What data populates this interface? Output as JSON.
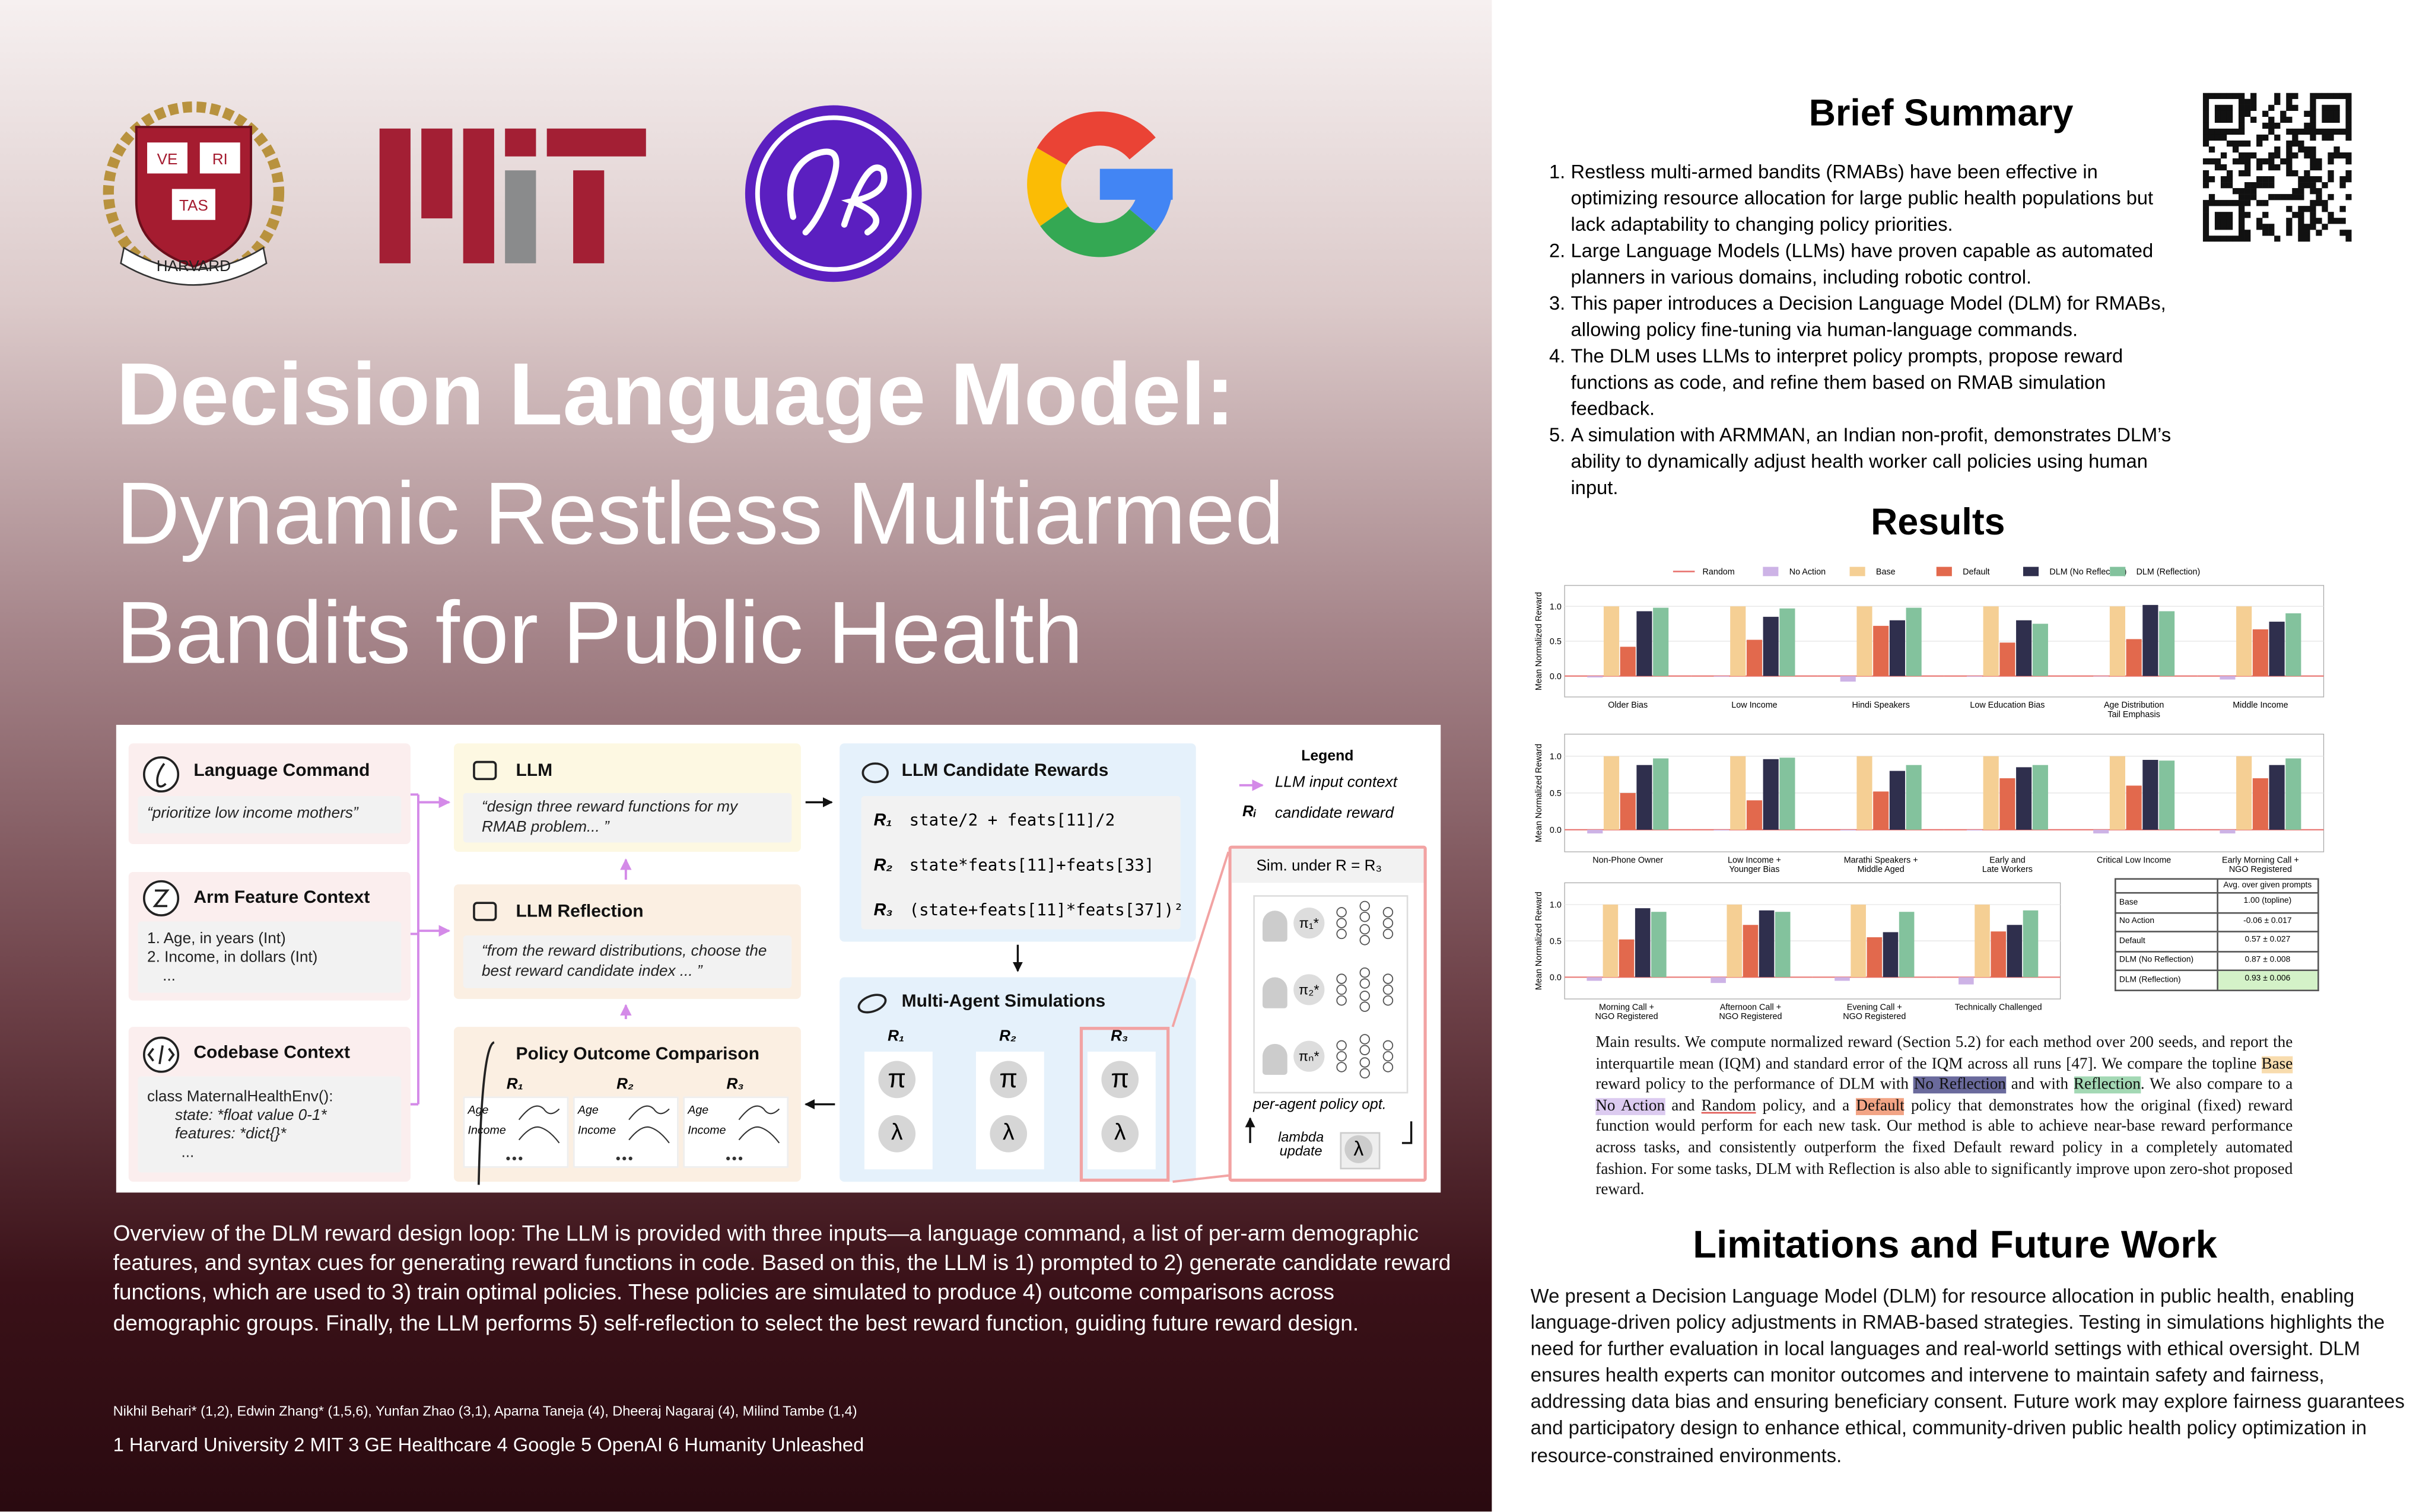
{
  "logos": {
    "harvard": [
      "VE",
      "RI",
      "TAS",
      "HARVARD"
    ]
  },
  "title": {
    "line1": "Decision Language Model:",
    "line2": "Dynamic Restless Multiarmed",
    "line3": "Bandits for Public Health"
  },
  "diagram": {
    "language_command": {
      "title": "Language Command",
      "text": "“prioritize low income mothers”"
    },
    "arm_feature": {
      "title": "Arm Feature Context",
      "lines": [
        "1. Age, in years (Int)",
        "2. Income, in dollars (Int)",
        "..."
      ]
    },
    "codebase": {
      "title": "Codebase Context",
      "lines": [
        "class MaternalHealthEnv():",
        "state: *float value 0-1*",
        "features: *dict{}*",
        "..."
      ]
    },
    "llm": {
      "title": "LLM",
      "text": "“design three reward functions for my RMAB problem... ”"
    },
    "reflection": {
      "title": "LLM Reflection",
      "text": "“from the reward distributions, choose the best reward candidate index ... ”"
    },
    "policy": {
      "title": "Policy Outcome Comparison",
      "panels": [
        "R₁",
        "R₂",
        "R₃"
      ],
      "rows": [
        "Age",
        "Income"
      ]
    },
    "candidates": {
      "title": "LLM Candidate Rewards",
      "items": [
        {
          "name": "R₁",
          "code": "state/2 + feats[11]/2"
        },
        {
          "name": "R₂",
          "code": "state*feats[11]+feats[33]"
        },
        {
          "name": "R₃",
          "code": "(state+feats[11]*feats[37])²"
        }
      ]
    },
    "legend": {
      "title": "Legend",
      "input": "LLM input context",
      "symbol": "Rᵢ",
      "candidate": "candidate reward"
    },
    "sims": {
      "title": "Multi-Agent Simulations",
      "columns": [
        "R₁",
        "R₂",
        "R₃"
      ],
      "pi": "π",
      "lambda": "λ"
    },
    "sim_detail": {
      "title": "Sim. under R = R₃",
      "agents": [
        "π₁*",
        "π₂*",
        "πₙ*"
      ],
      "label": "per-agent policy opt.",
      "update": "lambda\nupdate",
      "lambda": "λ"
    }
  },
  "caption": "Overview of the DLM reward design loop: The LLM is provided with three inputs—a language command, a list of per-arm demographic features, and syntax cues for generating reward functions in code. Based on this, the LLM is 1) prompted to 2) generate candidate reward functions, which are used to 3)  train optimal policies. These policies are simulated to produce 4) outcome comparisons across demographic groups. Finally, the LLM performs 5) self-reflection to select the best reward function, guiding future reward design.",
  "authors": "Nikhil Behari* (1,2), Edwin Zhang* (1,5,6), Yunfan Zhao (3,1), Aparna Taneja (4), Dheeraj Nagaraj (4), Milind Tambe (1,4)",
  "affiliations": "1 Harvard University 2 MIT 3 GE Healthcare 4 Google 5 OpenAI 6 Humanity Unleashed",
  "summary": {
    "title": "Brief Summary",
    "items": [
      {
        "n": "1.",
        "text": "Restless multi-armed bandits (RMABs) have been effective in optimizing resource allocation for large public health populations but lack adaptability to changing policy priorities."
      },
      {
        "n": "2.",
        "text": "Large Language Models (LLMs) have proven capable as automated planners in various domains, including robotic control."
      },
      {
        "n": "3.",
        "text": "This paper introduces a Decision Language Model (DLM) for RMABs, allowing policy fine-tuning via human-language commands."
      },
      {
        "n": "4.",
        "text": "The DLM uses LLMs to interpret policy prompts, propose reward functions as code, and refine them based on RMAB simulation feedback."
      },
      {
        "n": "5.",
        "text": "A simulation with ARMMAN, an Indian non-profit, demonstrates DLM’s ability to dynamically adjust health worker call policies using human input."
      }
    ]
  },
  "results_title": "Results",
  "chart_data": [
    {
      "type": "bar",
      "ylabel": "Mean Normalized Reward",
      "ylim": [
        -0.3,
        1.3
      ],
      "yticks": [
        {
          "value": 0,
          "label": "0.0"
        },
        {
          "value": 0.5,
          "label": "0.5"
        },
        {
          "value": 1,
          "label": "1.0"
        }
      ],
      "categories": [
        "Older Bias",
        "Low Income",
        "Hindi Speakers",
        "Low Education Bias",
        "Age Distribution\nTail Emphasis",
        "Middle Income"
      ],
      "series": [
        {
          "name": "Random",
          "color": "#e8736f",
          "marker": "line",
          "values": [
            0,
            0,
            0,
            0,
            0,
            0
          ]
        },
        {
          "name": "No Action",
          "color": "#cdb3e6",
          "values": [
            -0.02,
            -0.01,
            -0.08,
            -0.01,
            0.0,
            -0.05
          ]
        },
        {
          "name": "Base",
          "color": "#f5cf94",
          "values": [
            1,
            1,
            1,
            1,
            1,
            1
          ]
        },
        {
          "name": "Default",
          "color": "#e2694d",
          "values": [
            0.42,
            0.52,
            0.72,
            0.48,
            0.53,
            0.67
          ]
        },
        {
          "name": "DLM (No Reflection)",
          "color": "#2f2f4d",
          "values": [
            0.93,
            0.85,
            0.8,
            0.8,
            1.02,
            0.78
          ]
        },
        {
          "name": "DLM (Reflection)",
          "color": "#83c29d",
          "values": [
            0.98,
            0.97,
            0.98,
            0.75,
            0.93,
            0.9
          ]
        }
      ]
    },
    {
      "type": "bar",
      "ylabel": "Mean Normalized Reward",
      "ylim": [
        -0.3,
        1.3
      ],
      "yticks": [
        {
          "value": 0,
          "label": "0.0"
        },
        {
          "value": 0.5,
          "label": "0.5"
        },
        {
          "value": 1,
          "label": "1.0"
        }
      ],
      "categories": [
        "Non-Phone Owner",
        "Low Income +\nYounger Bias",
        "Marathi Speakers +\nMiddle Aged",
        "Early and\nLate Workers",
        "Critical Low Income",
        "Early Morning Call +\nNGO Registered"
      ],
      "series": [
        {
          "name": "Random",
          "color": "#e8736f",
          "marker": "line",
          "values": [
            0,
            0,
            0,
            0,
            0,
            0
          ]
        },
        {
          "name": "No Action",
          "color": "#cdb3e6",
          "values": [
            -0.05,
            -0.01,
            -0.01,
            -0.01,
            -0.05,
            -0.05
          ]
        },
        {
          "name": "Base",
          "color": "#f5cf94",
          "values": [
            1,
            1,
            1,
            1,
            1,
            1
          ]
        },
        {
          "name": "Default",
          "color": "#e2694d",
          "values": [
            0.5,
            0.4,
            0.52,
            0.7,
            0.6,
            0.7
          ]
        },
        {
          "name": "DLM (No Reflection)",
          "color": "#2f2f4d",
          "values": [
            0.88,
            0.96,
            0.8,
            0.85,
            0.95,
            0.88
          ]
        },
        {
          "name": "DLM (Reflection)",
          "color": "#83c29d",
          "values": [
            0.97,
            0.98,
            0.88,
            0.88,
            0.94,
            0.97
          ]
        }
      ]
    },
    {
      "type": "bar",
      "ylabel": "Mean Normalized Reward",
      "ylim": [
        -0.3,
        1.3
      ],
      "yticks": [
        {
          "value": 0,
          "label": "0.0"
        },
        {
          "value": 0.5,
          "label": "0.5"
        },
        {
          "value": 1,
          "label": "1.0"
        }
      ],
      "categories": [
        "Morning Call +\nNGO Registered",
        "Afternoon Call +\nNGO Registered",
        "Evening Call +\nNGO Registered",
        "Technically Challenged"
      ],
      "series": [
        {
          "name": "Random",
          "color": "#e8736f",
          "marker": "line",
          "values": [
            0,
            0,
            0,
            0
          ]
        },
        {
          "name": "No Action",
          "color": "#cdb3e6",
          "values": [
            -0.05,
            -0.08,
            -0.05,
            -0.1
          ]
        },
        {
          "name": "Base",
          "color": "#f5cf94",
          "values": [
            1,
            1,
            1,
            1
          ]
        },
        {
          "name": "Default",
          "color": "#e2694d",
          "values": [
            0.52,
            0.72,
            0.55,
            0.63
          ]
        },
        {
          "name": "DLM (No Reflection)",
          "color": "#2f2f4d",
          "values": [
            0.95,
            0.92,
            0.62,
            0.72
          ]
        },
        {
          "name": "DLM (Reflection)",
          "color": "#83c29d",
          "values": [
            0.9,
            0.9,
            0.9,
            0.92
          ]
        }
      ]
    }
  ],
  "results_table": {
    "header": "Avg. over given prompts",
    "rows": [
      [
        "Base",
        "1.00 (topline)"
      ],
      [
        "No Action",
        "-0.06 ± 0.017"
      ],
      [
        "Default",
        "0.57 ± 0.027"
      ],
      [
        "DLM (No Reflection)",
        "0.87 ± 0.008"
      ],
      [
        "DLM (Reflection)",
        "0.93 ± 0.006"
      ]
    ],
    "best_color": "#d4f2c8"
  },
  "results_text": [
    {
      "text": "Main results.  We compute normalized reward (Section 5.2) for each method over 200 seeds, and report the interquartile mean (IQM) and standard error of the IQM across all runs [47]. We compare the topline "
    },
    {
      "text": "Base",
      "highlight": "#f8dcae"
    },
    {
      "text": " reward policy to the performance of DLM with "
    },
    {
      "text": "No Reflection",
      "highlight": "#6a6a9c"
    },
    {
      "text": " and with "
    },
    {
      "text": "Reflection",
      "highlight": "#a3d8b4"
    },
    {
      "text": ".  We also compare to a "
    },
    {
      "text": "No Action",
      "highlight": "#dccbf0"
    },
    {
      "text": " and "
    },
    {
      "text": "Random",
      "underline": "#e05a55"
    },
    {
      "text": " policy, and a "
    },
    {
      "text": "Default",
      "highlight": "#f2a485"
    },
    {
      "text": " policy that demonstrates how the original (fixed) reward function would perform for each new task. Our method is able to achieve near-base reward performance across tasks, and consistently outperform the fixed Default reward policy in a completely automated fashion. For some tasks, DLM with Reflection is also able to significantly improve upon zero-shot proposed reward."
    }
  ],
  "limitations": {
    "title": "Limitations and Future Work",
    "text": "We present a Decision Language Model (DLM) for resource allocation in public health, enabling language-driven policy adjustments in RMAB-based strategies. Testing in simulations highlights the need for further evaluation in local languages and real-world settings with ethical oversight. DLM ensures health experts can monitor outcomes and intervene to maintain safety and fairness, addressing data bias and ensuring beneficiary consent. Future work may explore fairness guarantees and participatory design to enhance ethical, community-driven public health policy optimization in resource-constrained environments."
  }
}
